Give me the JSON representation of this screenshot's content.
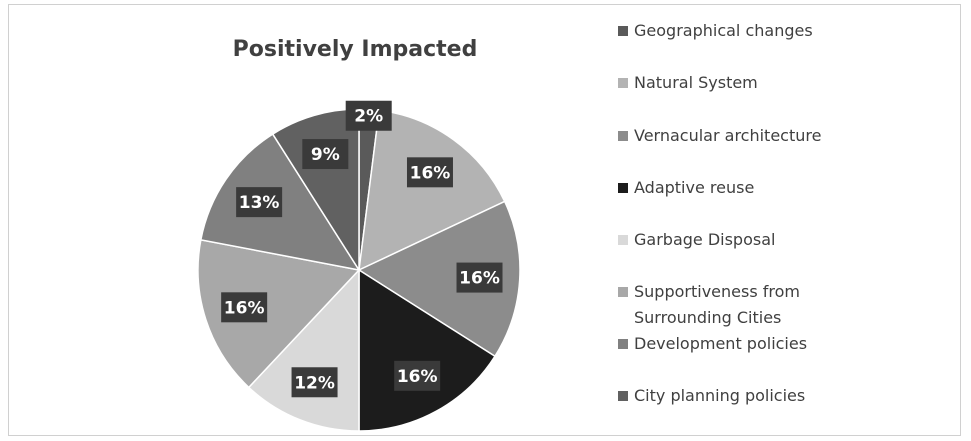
{
  "chart_data": {
    "type": "pie",
    "title": "Positively Impacted",
    "categories": [
      "Geographical changes",
      "Natural System",
      "Vernacular architecture",
      "Adaptive reuse",
      "Garbage Disposal",
      "Supportiveness from Surrounding Cities",
      "Development policies",
      "City planning policies"
    ],
    "values": [
      2,
      16,
      16,
      16,
      12,
      16,
      13,
      9
    ],
    "value_labels": [
      "2%",
      "16%",
      "16%",
      "16%",
      "12%",
      "16%",
      "13%",
      "9%"
    ],
    "colors": [
      "#5a5a5a",
      "#b3b3b3",
      "#8c8c8c",
      "#1c1c1c",
      "#d9d9d9",
      "#a8a8a8",
      "#808080",
      "#616161"
    ],
    "legend": "right"
  }
}
